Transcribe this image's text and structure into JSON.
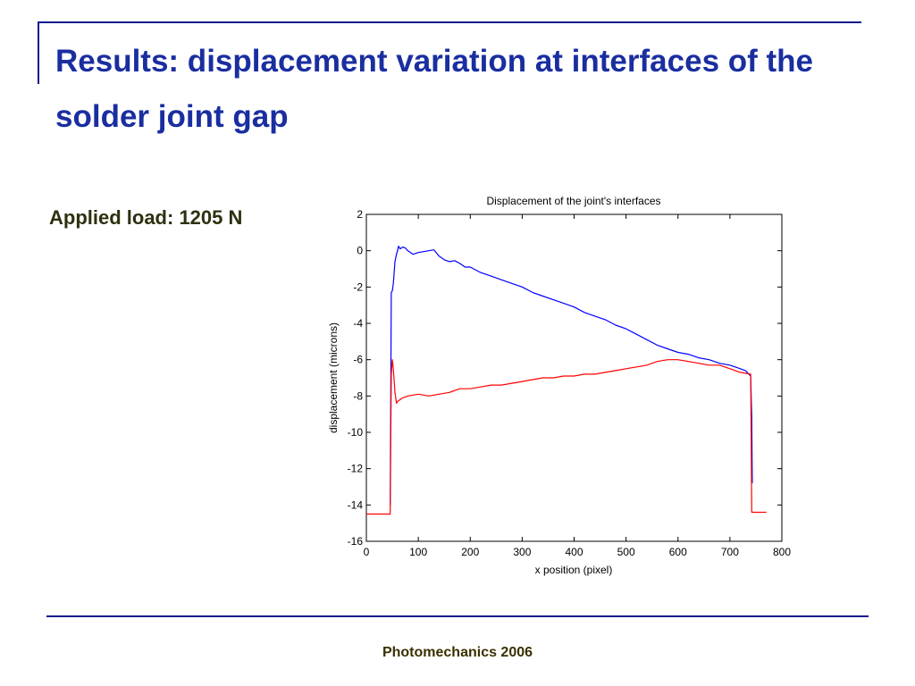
{
  "slide": {
    "title": "Results: displacement variation at interfaces of the solder joint gap",
    "load_label": "Applied load: 1205 N",
    "footer": "Photomechanics 2006",
    "accent_color": "#1a2ea0"
  },
  "chart_data": {
    "type": "line",
    "title": "Displacement of the joint's interfaces",
    "xlabel": "x position (pixel)",
    "ylabel": "displacement (microns)",
    "xlim": [
      0,
      800
    ],
    "ylim": [
      -16,
      2
    ],
    "xticks": [
      0,
      100,
      200,
      300,
      400,
      500,
      600,
      700,
      800
    ],
    "yticks": [
      2,
      0,
      -2,
      -4,
      -6,
      -8,
      -10,
      -12,
      -14,
      -16
    ],
    "grid": false,
    "series": [
      {
        "color": "#0000ff",
        "x": [
          46,
          48,
          50,
          52,
          55,
          58,
          60,
          62,
          65,
          70,
          75,
          80,
          90,
          100,
          110,
          120,
          130,
          140,
          150,
          160,
          170,
          180,
          190,
          200,
          220,
          240,
          260,
          280,
          300,
          320,
          340,
          360,
          380,
          400,
          420,
          440,
          460,
          480,
          500,
          520,
          540,
          560,
          580,
          600,
          620,
          640,
          660,
          680,
          700,
          720,
          730,
          740,
          742,
          743
        ],
        "y": [
          -14.0,
          -2.3,
          -2.2,
          -1.8,
          -0.6,
          -0.2,
          0.0,
          0.25,
          0.1,
          0.2,
          0.15,
          0.0,
          -0.2,
          -0.1,
          -0.05,
          0.0,
          0.05,
          -0.3,
          -0.5,
          -0.6,
          -0.55,
          -0.7,
          -0.9,
          -0.9,
          -1.2,
          -1.4,
          -1.6,
          -1.8,
          -2.0,
          -2.3,
          -2.5,
          -2.7,
          -2.9,
          -3.1,
          -3.4,
          -3.6,
          -3.8,
          -4.1,
          -4.3,
          -4.6,
          -4.9,
          -5.2,
          -5.4,
          -5.6,
          -5.7,
          -5.9,
          -6.0,
          -6.2,
          -6.3,
          -6.5,
          -6.6,
          -6.9,
          -9.2,
          -12.8
        ]
      },
      {
        "color": "#ff0000",
        "x": [
          0,
          46,
          48,
          50,
          52,
          55,
          58,
          60,
          65,
          70,
          80,
          100,
          120,
          140,
          160,
          180,
          200,
          220,
          240,
          260,
          280,
          300,
          320,
          340,
          360,
          380,
          400,
          420,
          440,
          460,
          480,
          500,
          520,
          540,
          560,
          580,
          600,
          620,
          640,
          660,
          680,
          700,
          720,
          740,
          742,
          745,
          770
        ],
        "y": [
          -14.5,
          -14.5,
          -6.8,
          -6.0,
          -6.5,
          -7.8,
          -8.4,
          -8.3,
          -8.2,
          -8.1,
          -8.0,
          -7.9,
          -8.0,
          -7.9,
          -7.8,
          -7.6,
          -7.6,
          -7.5,
          -7.4,
          -7.4,
          -7.3,
          -7.2,
          -7.1,
          -7.0,
          -7.0,
          -6.9,
          -6.9,
          -6.8,
          -6.8,
          -6.7,
          -6.6,
          -6.5,
          -6.4,
          -6.3,
          -6.1,
          -6.0,
          -6.0,
          -6.1,
          -6.2,
          -6.3,
          -6.3,
          -6.5,
          -6.7,
          -6.8,
          -14.4,
          -14.4,
          -14.4
        ]
      }
    ]
  }
}
